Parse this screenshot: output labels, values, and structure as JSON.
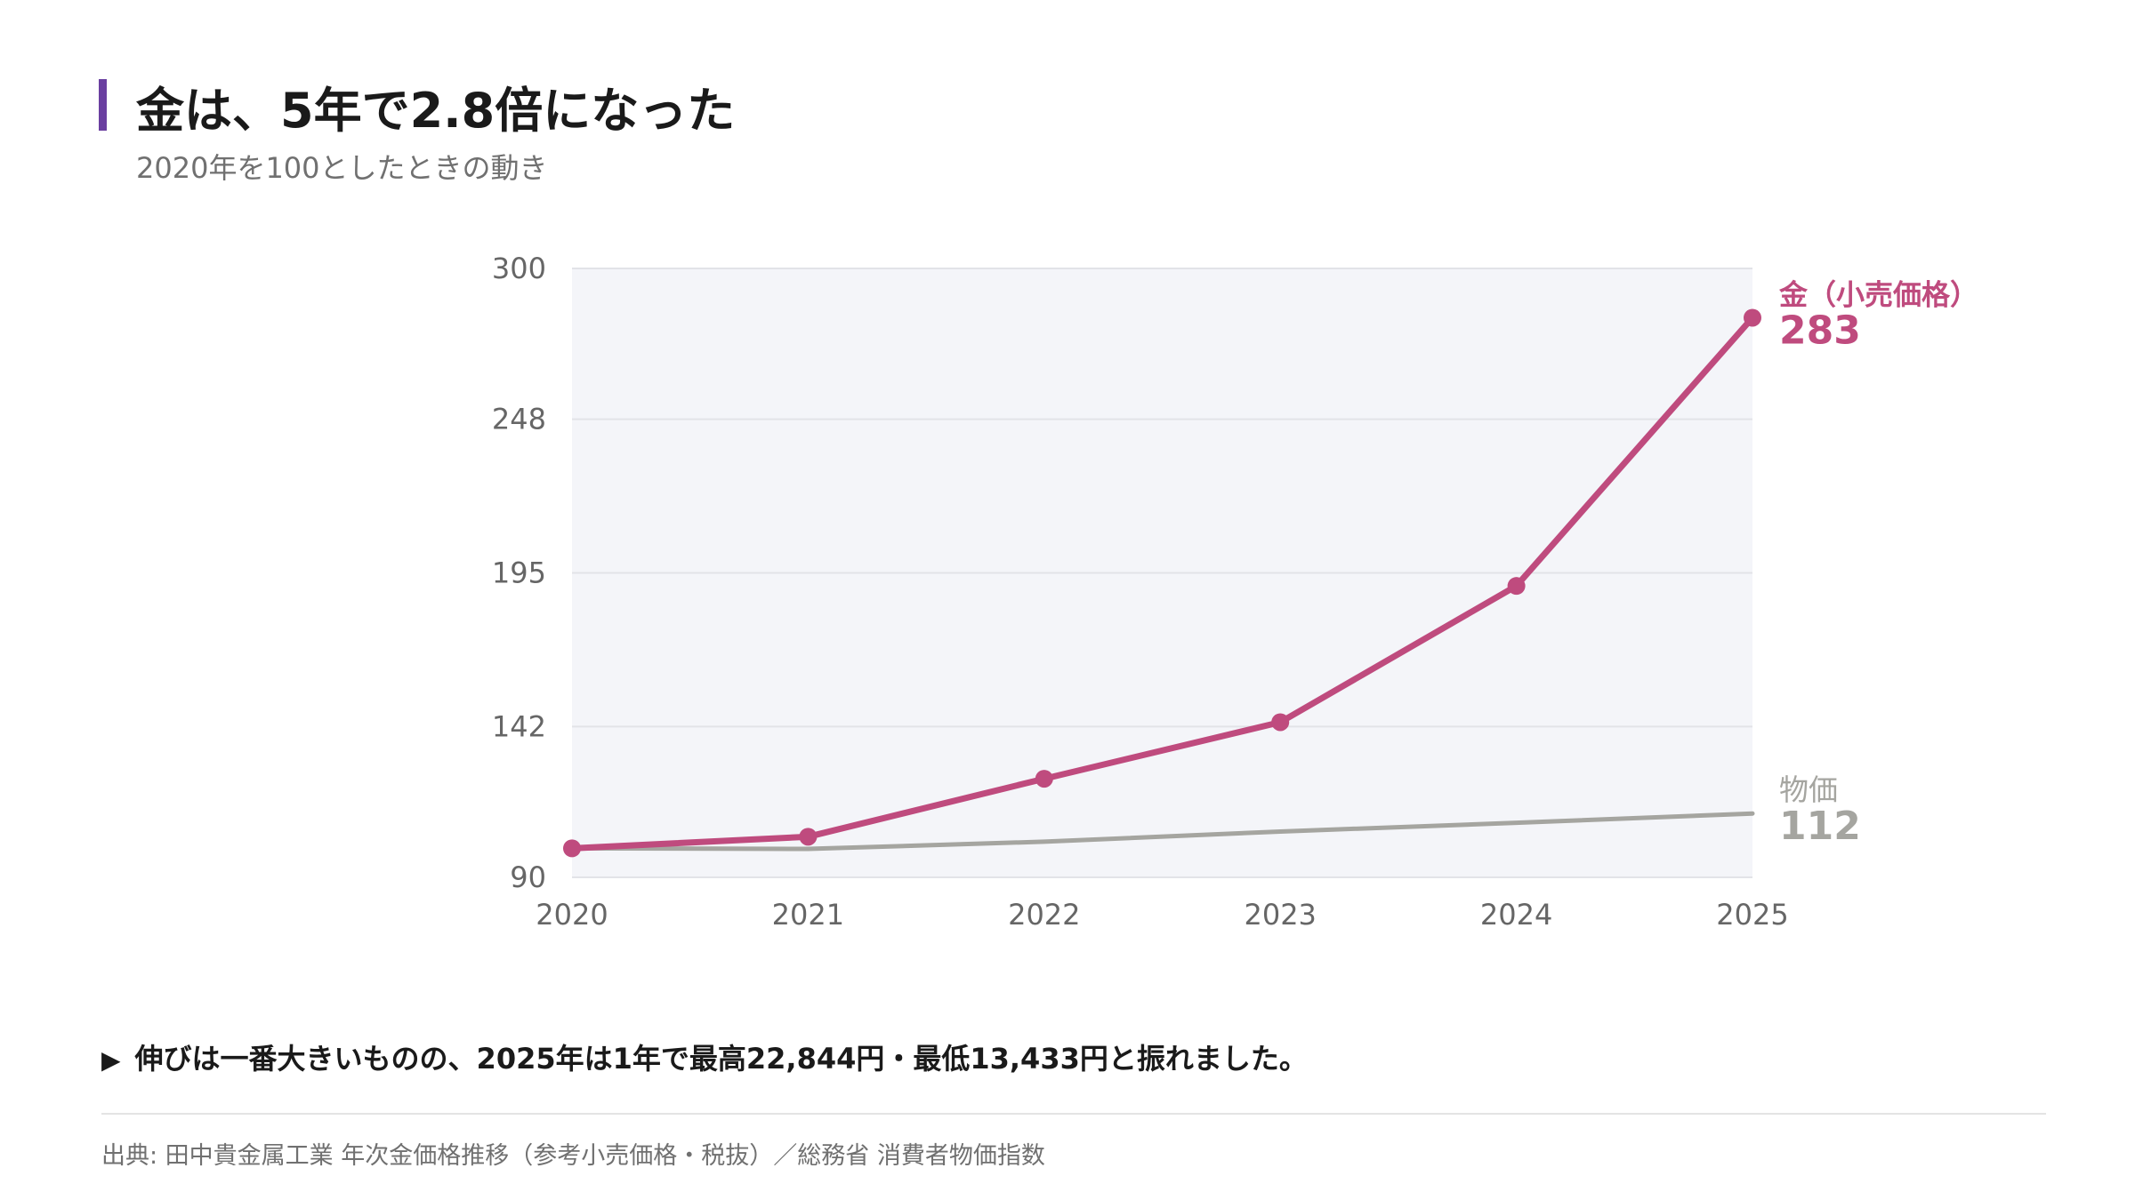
{
  "header": {
    "title": "金は、5年で2.8倍になった",
    "subtitle": "2020年を100としたときの動き"
  },
  "chart_data": {
    "type": "line",
    "x": [
      "2020",
      "2021",
      "2022",
      "2023",
      "2024",
      "2025"
    ],
    "ylim": [
      90,
      300
    ],
    "yticks": [
      "90",
      "142",
      "195",
      "248",
      "300"
    ],
    "grid": true,
    "series": [
      {
        "name": "金（小売価格）",
        "values": [
          100,
          104,
          124,
          143.5,
          190.5,
          283
        ],
        "end_label": "283",
        "color": "#bf4b7e",
        "markers": true
      },
      {
        "name": "物価",
        "values": [
          100,
          99.8,
          102.3,
          105.8,
          108.8,
          112
        ],
        "end_label": "112",
        "color": "#a5a5a0",
        "markers": false
      }
    ]
  },
  "footer": {
    "arrow": "▶",
    "takeaway": "伸びは一番大きいものの、2025年は1年で最高22,844円・最低13,433円と振れました。",
    "source": "出典: 田中貴金属工業 年次金価格推移（参考小売価格・税抜）／総務省 消費者物価指数"
  }
}
